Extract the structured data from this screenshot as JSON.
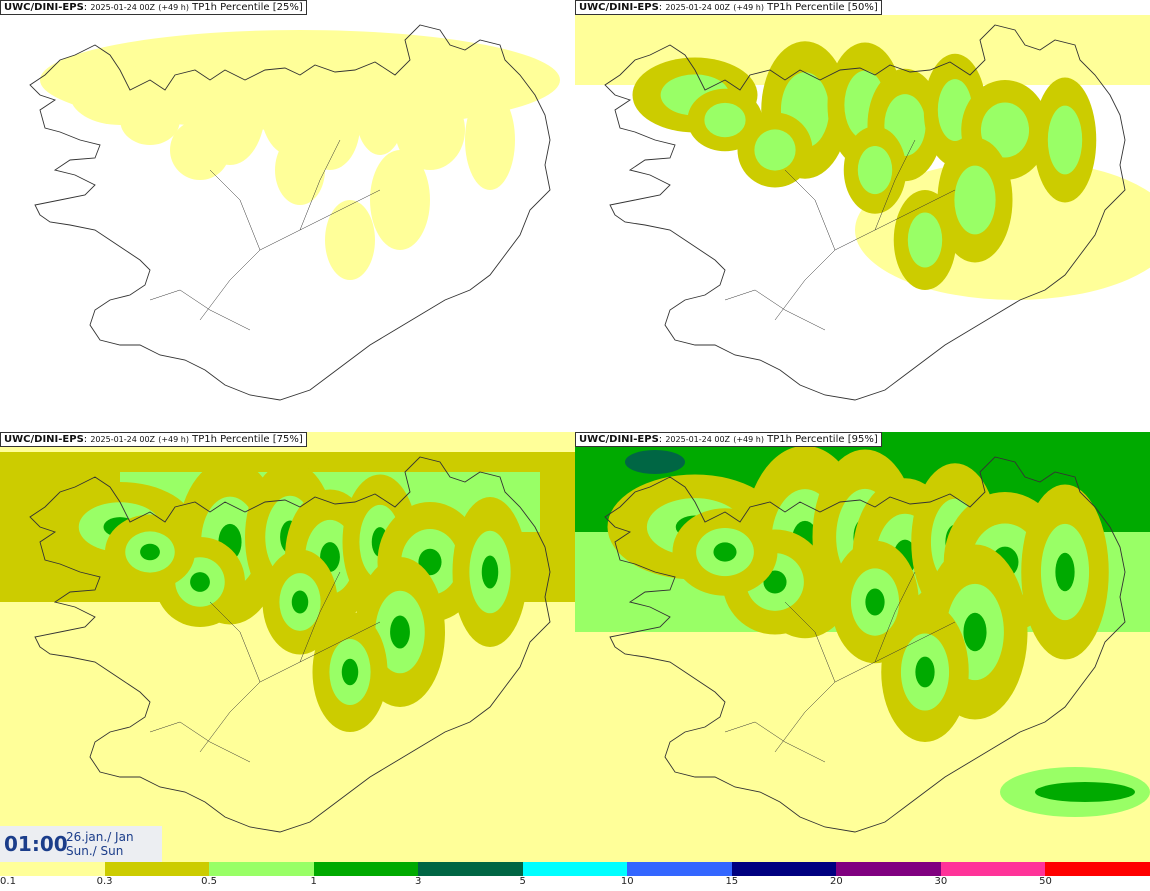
{
  "panels": [
    {
      "model": "UWC/DINI-EPS",
      "run": "2025-01-24 00Z",
      "lead": "(+49 h)",
      "product": "TP1h Percentile [25%]",
      "intensity": 0
    },
    {
      "model": "UWC/DINI-EPS",
      "run": "2025-01-24 00Z",
      "lead": "(+49 h)",
      "product": "TP1h Percentile [50%]",
      "intensity": 1
    },
    {
      "model": "UWC/DINI-EPS",
      "run": "2025-01-24 00Z",
      "lead": "(+49 h)",
      "product": "TP1h Percentile [75%]",
      "intensity": 2
    },
    {
      "model": "UWC/DINI-EPS",
      "run": "2025-01-24 00Z",
      "lead": "(+49 h)",
      "product": "TP1h Percentile [95%]",
      "intensity": 3
    }
  ],
  "valid_time": {
    "time": "01:00",
    "date_line1": "26.jan./ Jan",
    "date_line2": "Sun./ Sun"
  },
  "colorbar": {
    "colors": [
      "#ffff99",
      "#cccc00",
      "#99ff66",
      "#00aa00",
      "#006644",
      "#00ffff",
      "#3366ff",
      "#000080",
      "#800080",
      "#ff3399",
      "#ff0000"
    ],
    "labels": [
      "0.1",
      "0.3",
      "0.5",
      "1",
      "3",
      "5",
      "10",
      "15",
      "20",
      "30",
      "50"
    ]
  },
  "colors": {
    "outline": "#333333"
  }
}
